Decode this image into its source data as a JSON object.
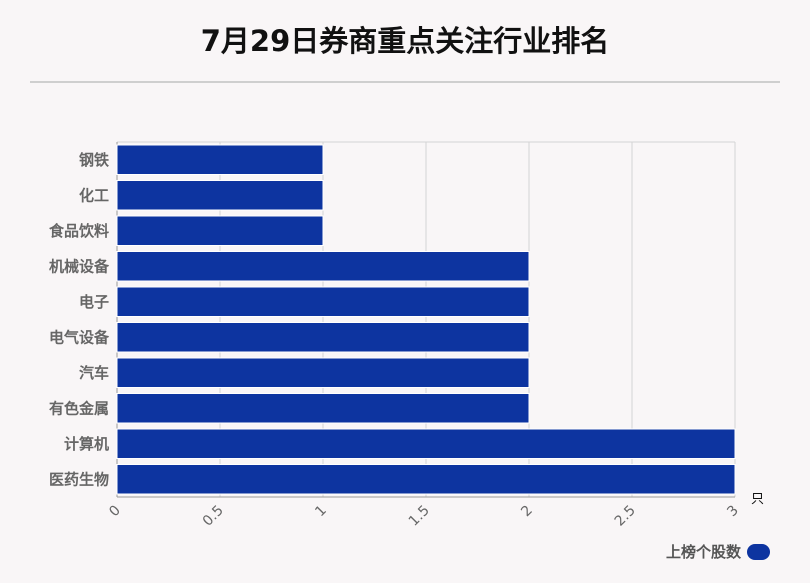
{
  "title": "7月29日券商重点关注行业排名",
  "chart_data": {
    "type": "bar",
    "orientation": "horizontal",
    "categories": [
      "钢铁",
      "化工",
      "食品饮料",
      "机械设备",
      "电子",
      "电气设备",
      "汽车",
      "有色金属",
      "计算机",
      "医药生物"
    ],
    "series": [
      {
        "name": "上榜个股数",
        "values": [
          1,
          1,
          1,
          2,
          2,
          2,
          2,
          2,
          3,
          3
        ]
      }
    ],
    "xlim": [
      0,
      3
    ],
    "xticks": [
      "0",
      "0.5",
      "1",
      "1.5",
      "2",
      "2.5",
      "3"
    ],
    "unit": "只",
    "grid": true,
    "legend_position": "bottom-right"
  },
  "colors": {
    "bar": "#0d34a0",
    "grid": "#d4d4d4",
    "axis_text": "#666666"
  }
}
